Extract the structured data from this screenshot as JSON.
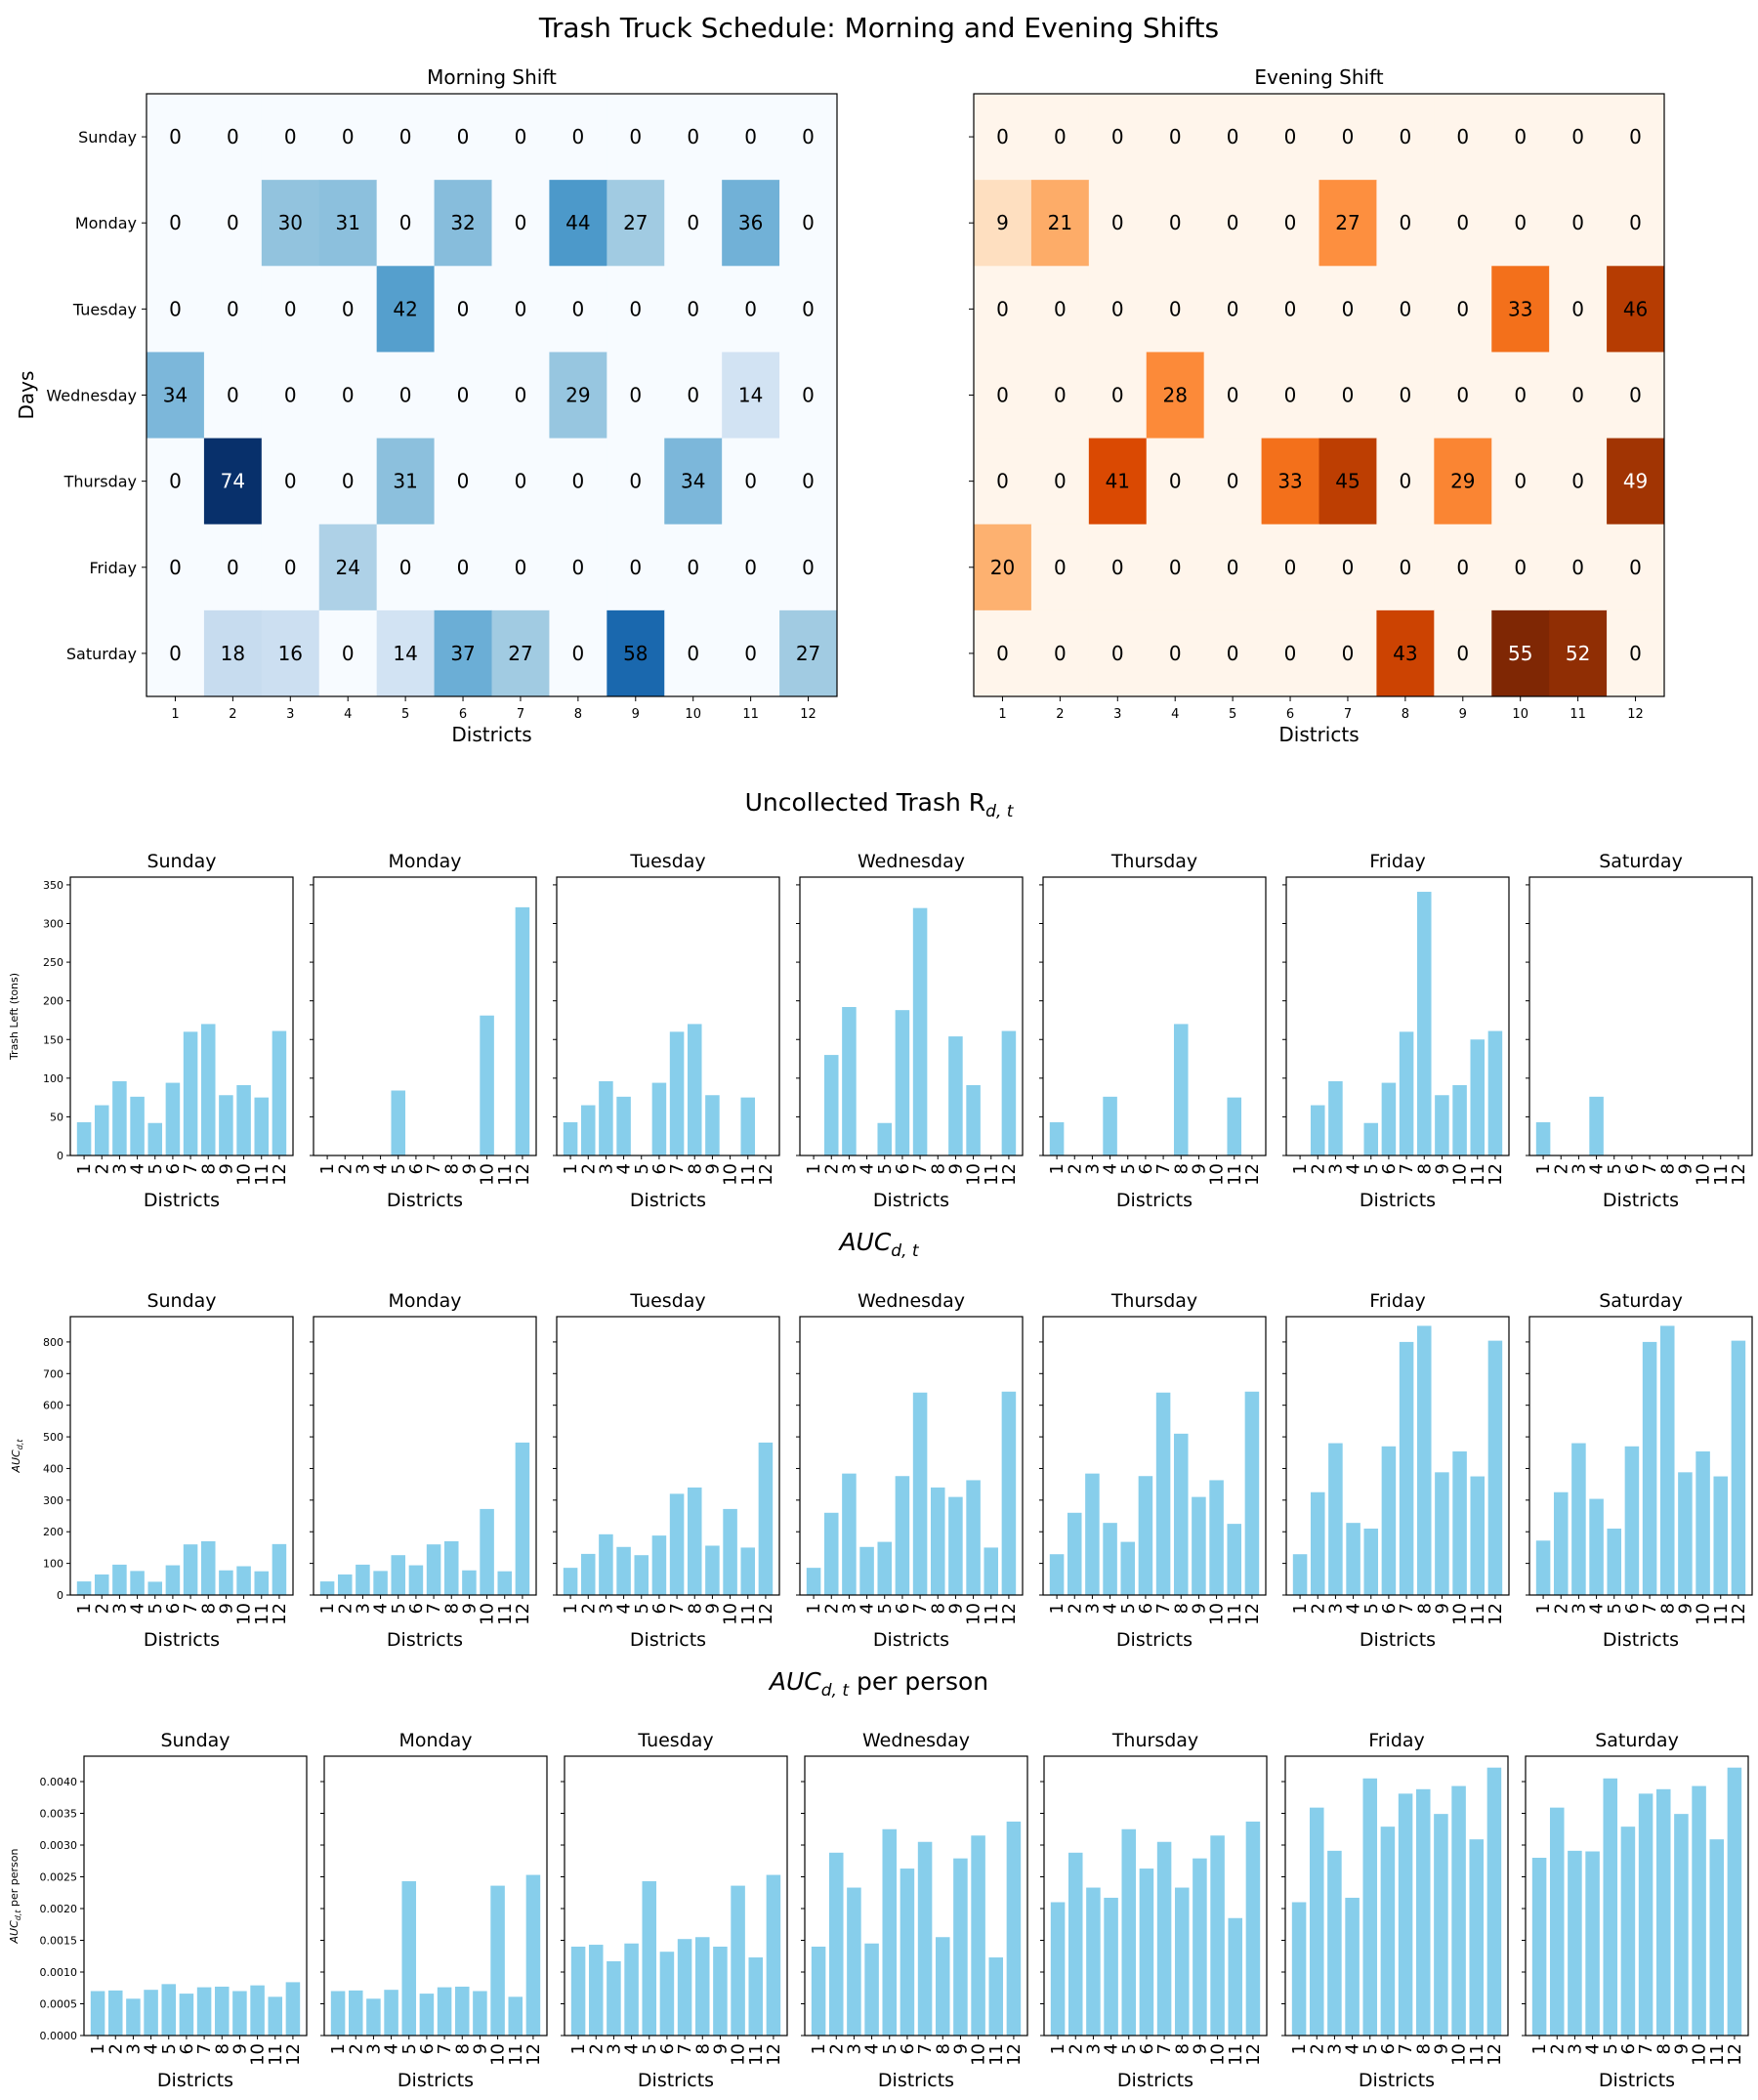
{
  "title": "Trash Truck Schedule: Morning and Evening Shifts",
  "section_titles": {
    "uncollected": "Uncollected Trash R",
    "uncollected_sub": "d, t",
    "auc": "AUC",
    "auc_sub": "d, t",
    "auc_pp": "AUC",
    "auc_pp_sub": "d, t",
    "auc_pp_suffix": " per person"
  },
  "chart_data": [
    {
      "type": "heatmap",
      "title": "Morning Shift",
      "xlabel": "Districts",
      "ylabel": "Days",
      "colormap": "Blues",
      "x": [
        "1",
        "2",
        "3",
        "4",
        "5",
        "6",
        "7",
        "8",
        "9",
        "10",
        "11",
        "12"
      ],
      "y": [
        "Sunday",
        "Monday",
        "Tuesday",
        "Wednesday",
        "Thursday",
        "Friday",
        "Saturday"
      ],
      "vmax": 74,
      "values": [
        [
          0,
          0,
          0,
          0,
          0,
          0,
          0,
          0,
          0,
          0,
          0,
          0
        ],
        [
          0,
          0,
          30,
          31,
          0,
          32,
          0,
          44,
          27,
          0,
          36,
          0
        ],
        [
          0,
          0,
          0,
          0,
          42,
          0,
          0,
          0,
          0,
          0,
          0,
          0
        ],
        [
          34,
          0,
          0,
          0,
          0,
          0,
          0,
          29,
          0,
          0,
          14,
          0
        ],
        [
          0,
          74,
          0,
          0,
          31,
          0,
          0,
          0,
          0,
          34,
          0,
          0
        ],
        [
          0,
          0,
          0,
          24,
          0,
          0,
          0,
          0,
          0,
          0,
          0,
          0
        ],
        [
          0,
          18,
          16,
          0,
          14,
          37,
          27,
          0,
          58,
          0,
          0,
          27
        ]
      ]
    },
    {
      "type": "heatmap",
      "title": "Evening Shift",
      "xlabel": "Districts",
      "ylabel": "",
      "colormap": "Oranges",
      "x": [
        "1",
        "2",
        "3",
        "4",
        "5",
        "6",
        "7",
        "8",
        "9",
        "10",
        "11",
        "12"
      ],
      "y": [
        "Sunday",
        "Monday",
        "Tuesday",
        "Wednesday",
        "Thursday",
        "Friday",
        "Saturday"
      ],
      "vmax": 55,
      "values": [
        [
          0,
          0,
          0,
          0,
          0,
          0,
          0,
          0,
          0,
          0,
          0,
          0
        ],
        [
          9,
          21,
          0,
          0,
          0,
          0,
          27,
          0,
          0,
          0,
          0,
          0
        ],
        [
          0,
          0,
          0,
          0,
          0,
          0,
          0,
          0,
          0,
          33,
          0,
          46
        ],
        [
          0,
          0,
          0,
          28,
          0,
          0,
          0,
          0,
          0,
          0,
          0,
          0
        ],
        [
          0,
          0,
          41,
          0,
          0,
          33,
          45,
          0,
          29,
          0,
          0,
          49
        ],
        [
          20,
          0,
          0,
          0,
          0,
          0,
          0,
          0,
          0,
          0,
          0,
          0
        ],
        [
          0,
          0,
          0,
          0,
          0,
          0,
          0,
          43,
          0,
          55,
          52,
          0
        ]
      ]
    },
    {
      "type": "bar",
      "group": "uncollected",
      "ylabel": "Trash Left (tons)",
      "xlabel": "Districts",
      "ylim": [
        0,
        360
      ],
      "yticks": [
        0,
        50,
        100,
        150,
        200,
        250,
        300,
        350
      ],
      "categories": [
        "1",
        "2",
        "3",
        "4",
        "5",
        "6",
        "7",
        "8",
        "9",
        "10",
        "11",
        "12"
      ],
      "bar_color": "#87ceeb",
      "panels": [
        {
          "title": "Sunday",
          "values": [
            43,
            65,
            96,
            76,
            42,
            94,
            160,
            170,
            78,
            91,
            75,
            161
          ]
        },
        {
          "title": "Monday",
          "values": [
            0,
            0,
            0,
            0,
            84,
            0,
            0,
            0,
            0,
            181,
            0,
            321
          ]
        },
        {
          "title": "Tuesday",
          "values": [
            43,
            65,
            96,
            76,
            0,
            94,
            160,
            170,
            78,
            0,
            75,
            0
          ]
        },
        {
          "title": "Wednesday",
          "values": [
            0,
            130,
            192,
            0,
            42,
            188,
            320,
            0,
            154,
            91,
            0,
            161
          ]
        },
        {
          "title": "Thursday",
          "values": [
            43,
            0,
            0,
            76,
            0,
            0,
            0,
            170,
            0,
            0,
            75,
            0
          ]
        },
        {
          "title": "Friday",
          "values": [
            0,
            65,
            96,
            0,
            42,
            94,
            160,
            341,
            78,
            91,
            150,
            161
          ]
        },
        {
          "title": "Saturday",
          "values": [
            43,
            0,
            0,
            76,
            0,
            0,
            0,
            0,
            0,
            0,
            0,
            0
          ]
        }
      ]
    },
    {
      "type": "bar",
      "group": "auc",
      "ylabel": "AUC",
      "ylabel_sub": "d,t",
      "xlabel": "Districts",
      "ylim": [
        0,
        880
      ],
      "yticks": [
        0,
        100,
        200,
        300,
        400,
        500,
        600,
        700,
        800
      ],
      "categories": [
        "1",
        "2",
        "3",
        "4",
        "5",
        "6",
        "7",
        "8",
        "9",
        "10",
        "11",
        "12"
      ],
      "bar_color": "#87ceeb",
      "panels": [
        {
          "title": "Sunday",
          "values": [
            43,
            65,
            96,
            76,
            42,
            94,
            160,
            170,
            78,
            91,
            75,
            161
          ]
        },
        {
          "title": "Monday",
          "values": [
            43,
            65,
            96,
            76,
            126,
            94,
            160,
            170,
            78,
            272,
            75,
            482
          ]
        },
        {
          "title": "Tuesday",
          "values": [
            86,
            130,
            192,
            152,
            126,
            188,
            320,
            340,
            156,
            272,
            150,
            482
          ]
        },
        {
          "title": "Wednesday",
          "values": [
            86,
            260,
            384,
            152,
            168,
            376,
            640,
            340,
            310,
            363,
            150,
            643
          ]
        },
        {
          "title": "Thursday",
          "values": [
            129,
            260,
            384,
            228,
            168,
            376,
            640,
            510,
            310,
            363,
            225,
            643
          ]
        },
        {
          "title": "Friday",
          "values": [
            129,
            325,
            480,
            228,
            210,
            470,
            800,
            851,
            388,
            454,
            375,
            804
          ]
        },
        {
          "title": "Saturday",
          "values": [
            172,
            325,
            480,
            304,
            210,
            470,
            800,
            851,
            388,
            454,
            375,
            804
          ]
        }
      ]
    },
    {
      "type": "bar",
      "group": "auc_pp",
      "ylabel": "AUC",
      "ylabel_sub": "d,t",
      "ylabel_suffix": " per person",
      "xlabel": "Districts",
      "ylim": [
        0,
        0.0044
      ],
      "yticks": [
        "0.0000",
        "0.0005",
        "0.0010",
        "0.0015",
        "0.0020",
        "0.0025",
        "0.0030",
        "0.0035",
        "0.0040"
      ],
      "categories": [
        "1",
        "2",
        "3",
        "4",
        "5",
        "6",
        "7",
        "8",
        "9",
        "10",
        "11",
        "12"
      ],
      "bar_color": "#87ceeb",
      "panels": [
        {
          "title": "Sunday",
          "values": [
            0.0007,
            0.00071,
            0.00058,
            0.00072,
            0.00081,
            0.00066,
            0.00076,
            0.00077,
            0.0007,
            0.00079,
            0.00061,
            0.00084
          ]
        },
        {
          "title": "Monday",
          "values": [
            0.0007,
            0.00071,
            0.00058,
            0.00072,
            0.00243,
            0.00066,
            0.00076,
            0.00077,
            0.0007,
            0.00236,
            0.00061,
            0.00253
          ]
        },
        {
          "title": "Tuesday",
          "values": [
            0.0014,
            0.00143,
            0.00117,
            0.00145,
            0.00243,
            0.00132,
            0.00152,
            0.00155,
            0.0014,
            0.00236,
            0.00123,
            0.00253
          ]
        },
        {
          "title": "Wednesday",
          "values": [
            0.0014,
            0.00288,
            0.00233,
            0.00145,
            0.00325,
            0.00263,
            0.00305,
            0.00155,
            0.00279,
            0.00315,
            0.00123,
            0.00337
          ]
        },
        {
          "title": "Thursday",
          "values": [
            0.0021,
            0.00288,
            0.00233,
            0.00217,
            0.00325,
            0.00263,
            0.00305,
            0.00233,
            0.00279,
            0.00315,
            0.00185,
            0.00337
          ]
        },
        {
          "title": "Friday",
          "values": [
            0.0021,
            0.00359,
            0.00291,
            0.00217,
            0.00405,
            0.00329,
            0.00381,
            0.00388,
            0.00349,
            0.00393,
            0.00309,
            0.00422
          ]
        },
        {
          "title": "Saturday",
          "values": [
            0.0028,
            0.00359,
            0.00291,
            0.0029,
            0.00405,
            0.00329,
            0.00381,
            0.00388,
            0.00349,
            0.00393,
            0.00309,
            0.00422
          ]
        }
      ]
    }
  ]
}
